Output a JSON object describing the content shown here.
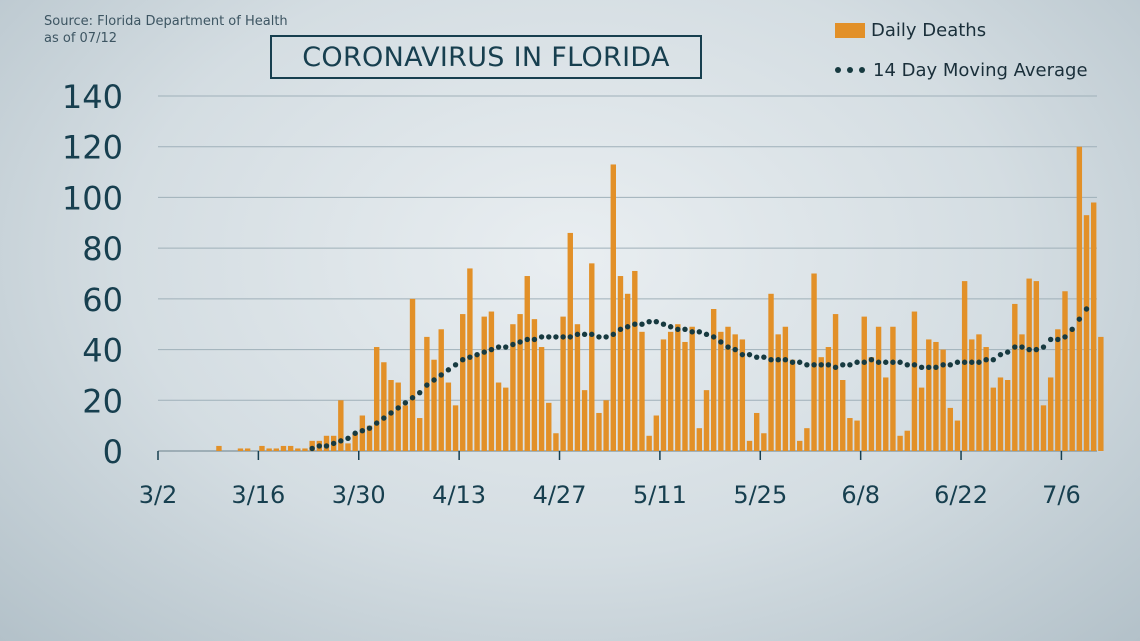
{
  "source_lines": [
    "Source: Florida Department of Health",
    "as of 07/12"
  ],
  "colors": {
    "bar": "#e29028",
    "average": "#173a40",
    "text": "#173f4f",
    "grid": "#9fb0b9"
  },
  "chart_data": {
    "type": "bar",
    "title": "CORONAVIRUS IN FLORIDA",
    "xlabel": "",
    "ylabel": "",
    "ylim": [
      0,
      140
    ],
    "yticks": [
      0,
      20,
      40,
      60,
      80,
      100,
      120,
      140
    ],
    "x_start": "3/2",
    "x_end": "7/12",
    "x_ticks": [
      "3/2",
      "3/16",
      "3/30",
      "4/13",
      "4/27",
      "5/11",
      "5/25",
      "6/8",
      "6/22",
      "7/6"
    ],
    "grid": true,
    "legend_position": "top-right",
    "series": [
      {
        "name": "Daily Deaths",
        "type": "bar",
        "values": [
          0,
          0,
          0,
          0,
          0,
          0,
          0,
          0,
          2,
          0,
          0,
          1,
          1,
          0,
          2,
          1,
          1,
          2,
          2,
          1,
          1,
          4,
          4,
          6,
          6,
          20,
          3,
          7,
          14,
          10,
          41,
          35,
          28,
          27,
          18,
          60,
          13,
          45,
          36,
          48,
          27,
          18,
          54,
          72,
          38,
          53,
          55,
          27,
          25,
          50,
          54,
          69,
          52,
          41,
          19,
          7,
          53,
          86,
          50,
          24,
          74,
          15,
          20,
          113,
          69,
          62,
          71,
          47,
          6,
          14,
          44,
          47,
          50,
          43,
          49,
          9,
          24,
          56,
          47,
          49,
          46,
          44,
          4,
          15,
          7,
          62,
          46,
          49,
          36,
          4,
          9,
          70,
          37,
          41,
          54,
          28,
          13,
          12,
          53,
          37,
          49,
          29,
          49,
          6,
          8,
          55,
          25,
          44,
          43,
          40,
          17,
          12,
          67,
          44,
          46,
          41,
          25,
          29,
          28,
          58,
          46,
          68,
          67,
          18,
          29,
          48,
          63,
          48,
          120,
          93,
          98,
          45
        ]
      },
      {
        "name": "14 Day Moving Average",
        "type": "line",
        "x_start": "3/23",
        "values": [
          1,
          2,
          2,
          3,
          4,
          5,
          7,
          8,
          9,
          11,
          13,
          15,
          17,
          19,
          21,
          23,
          26,
          28,
          30,
          32,
          34,
          36,
          37,
          38,
          39,
          40,
          41,
          41,
          42,
          43,
          44,
          44,
          45,
          45,
          45,
          45,
          45,
          46,
          46,
          46,
          45,
          45,
          46,
          48,
          49,
          50,
          50,
          51,
          51,
          50,
          49,
          48,
          48,
          47,
          47,
          46,
          45,
          43,
          41,
          40,
          38,
          38,
          37,
          37,
          36,
          36,
          36,
          35,
          35,
          34,
          34,
          34,
          34,
          33,
          34,
          34,
          35,
          35,
          36,
          35,
          35,
          35,
          35,
          34,
          34,
          33,
          33,
          33,
          34,
          34,
          35,
          35,
          35,
          35,
          36,
          36,
          38,
          39,
          41,
          41,
          40,
          40,
          41,
          44,
          44,
          45,
          48,
          52,
          56
        ]
      }
    ]
  }
}
